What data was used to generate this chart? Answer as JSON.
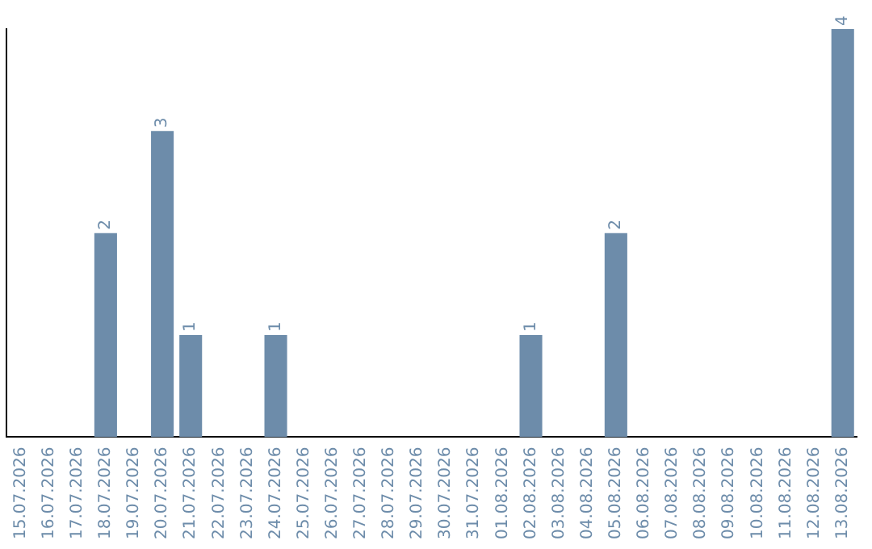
{
  "chart_data": {
    "type": "bar",
    "categories": [
      "15.07.2026",
      "16.07.2026",
      "17.07.2026",
      "18.07.2026",
      "19.07.2026",
      "20.07.2026",
      "21.07.2026",
      "22.07.2026",
      "23.07.2026",
      "24.07.2026",
      "25.07.2026",
      "26.07.2026",
      "27.07.2026",
      "28.07.2026",
      "29.07.2026",
      "30.07.2026",
      "31.07.2026",
      "01.08.2026",
      "02.08.2026",
      "03.08.2026",
      "04.08.2026",
      "05.08.2026",
      "06.08.2026",
      "07.08.2026",
      "08.08.2026",
      "09.08.2026",
      "10.08.2026",
      "11.08.2026",
      "12.08.2026",
      "13.08.2026"
    ],
    "values": [
      null,
      null,
      null,
      2,
      null,
      3,
      1,
      null,
      null,
      1,
      null,
      null,
      null,
      null,
      null,
      null,
      null,
      null,
      1,
      null,
      null,
      2,
      null,
      null,
      null,
      null,
      null,
      null,
      null,
      4
    ],
    "color": "#6d8caa",
    "ylim": [
      0,
      4
    ],
    "data_labels": true,
    "grid": false,
    "legend": false,
    "tick_labels": "x"
  }
}
